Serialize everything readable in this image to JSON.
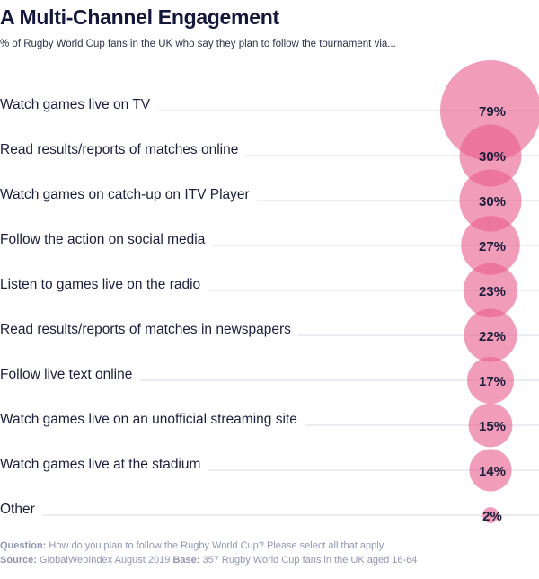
{
  "title": "A Multi-Channel Engagement",
  "subtitle": "% of Rugby World Cup fans in the UK who say they plan to follow the tournament via...",
  "footer": {
    "question_label": "Question:",
    "question_text": "How do you plan to follow the Rugby World Cup? Please select all that apply.",
    "source_label": "Source:",
    "source_text": "GlobalWebIndex August 2019",
    "base_label": "Base:",
    "base_text": "357 Rugby World Cup fans in the UK aged 16-64"
  },
  "colors": {
    "bubble": "#e8608c",
    "line": "#d7dbe6",
    "label": "#1b1f3b",
    "value": "#1b1f3b"
  },
  "chart_data": {
    "type": "bubble",
    "title": "A Multi-Channel Engagement",
    "unit": "%",
    "categories": [
      "Watch games live on TV",
      "Read results/reports of matches online",
      "Watch games on catch-up on ITV Player",
      "Follow the action on social media",
      "Listen to games live on the radio",
      "Read results/reports of matches in newspapers",
      "Follow live text online",
      "Watch games live on an unofficial streaming site",
      "Watch games live at the stadium",
      "Other"
    ],
    "values": [
      79,
      30,
      30,
      27,
      23,
      22,
      17,
      15,
      14,
      2
    ],
    "value_labels": [
      "79%",
      "30%",
      "30%",
      "27%",
      "23%",
      "22%",
      "17%",
      "15%",
      "14%",
      "2%"
    ]
  }
}
